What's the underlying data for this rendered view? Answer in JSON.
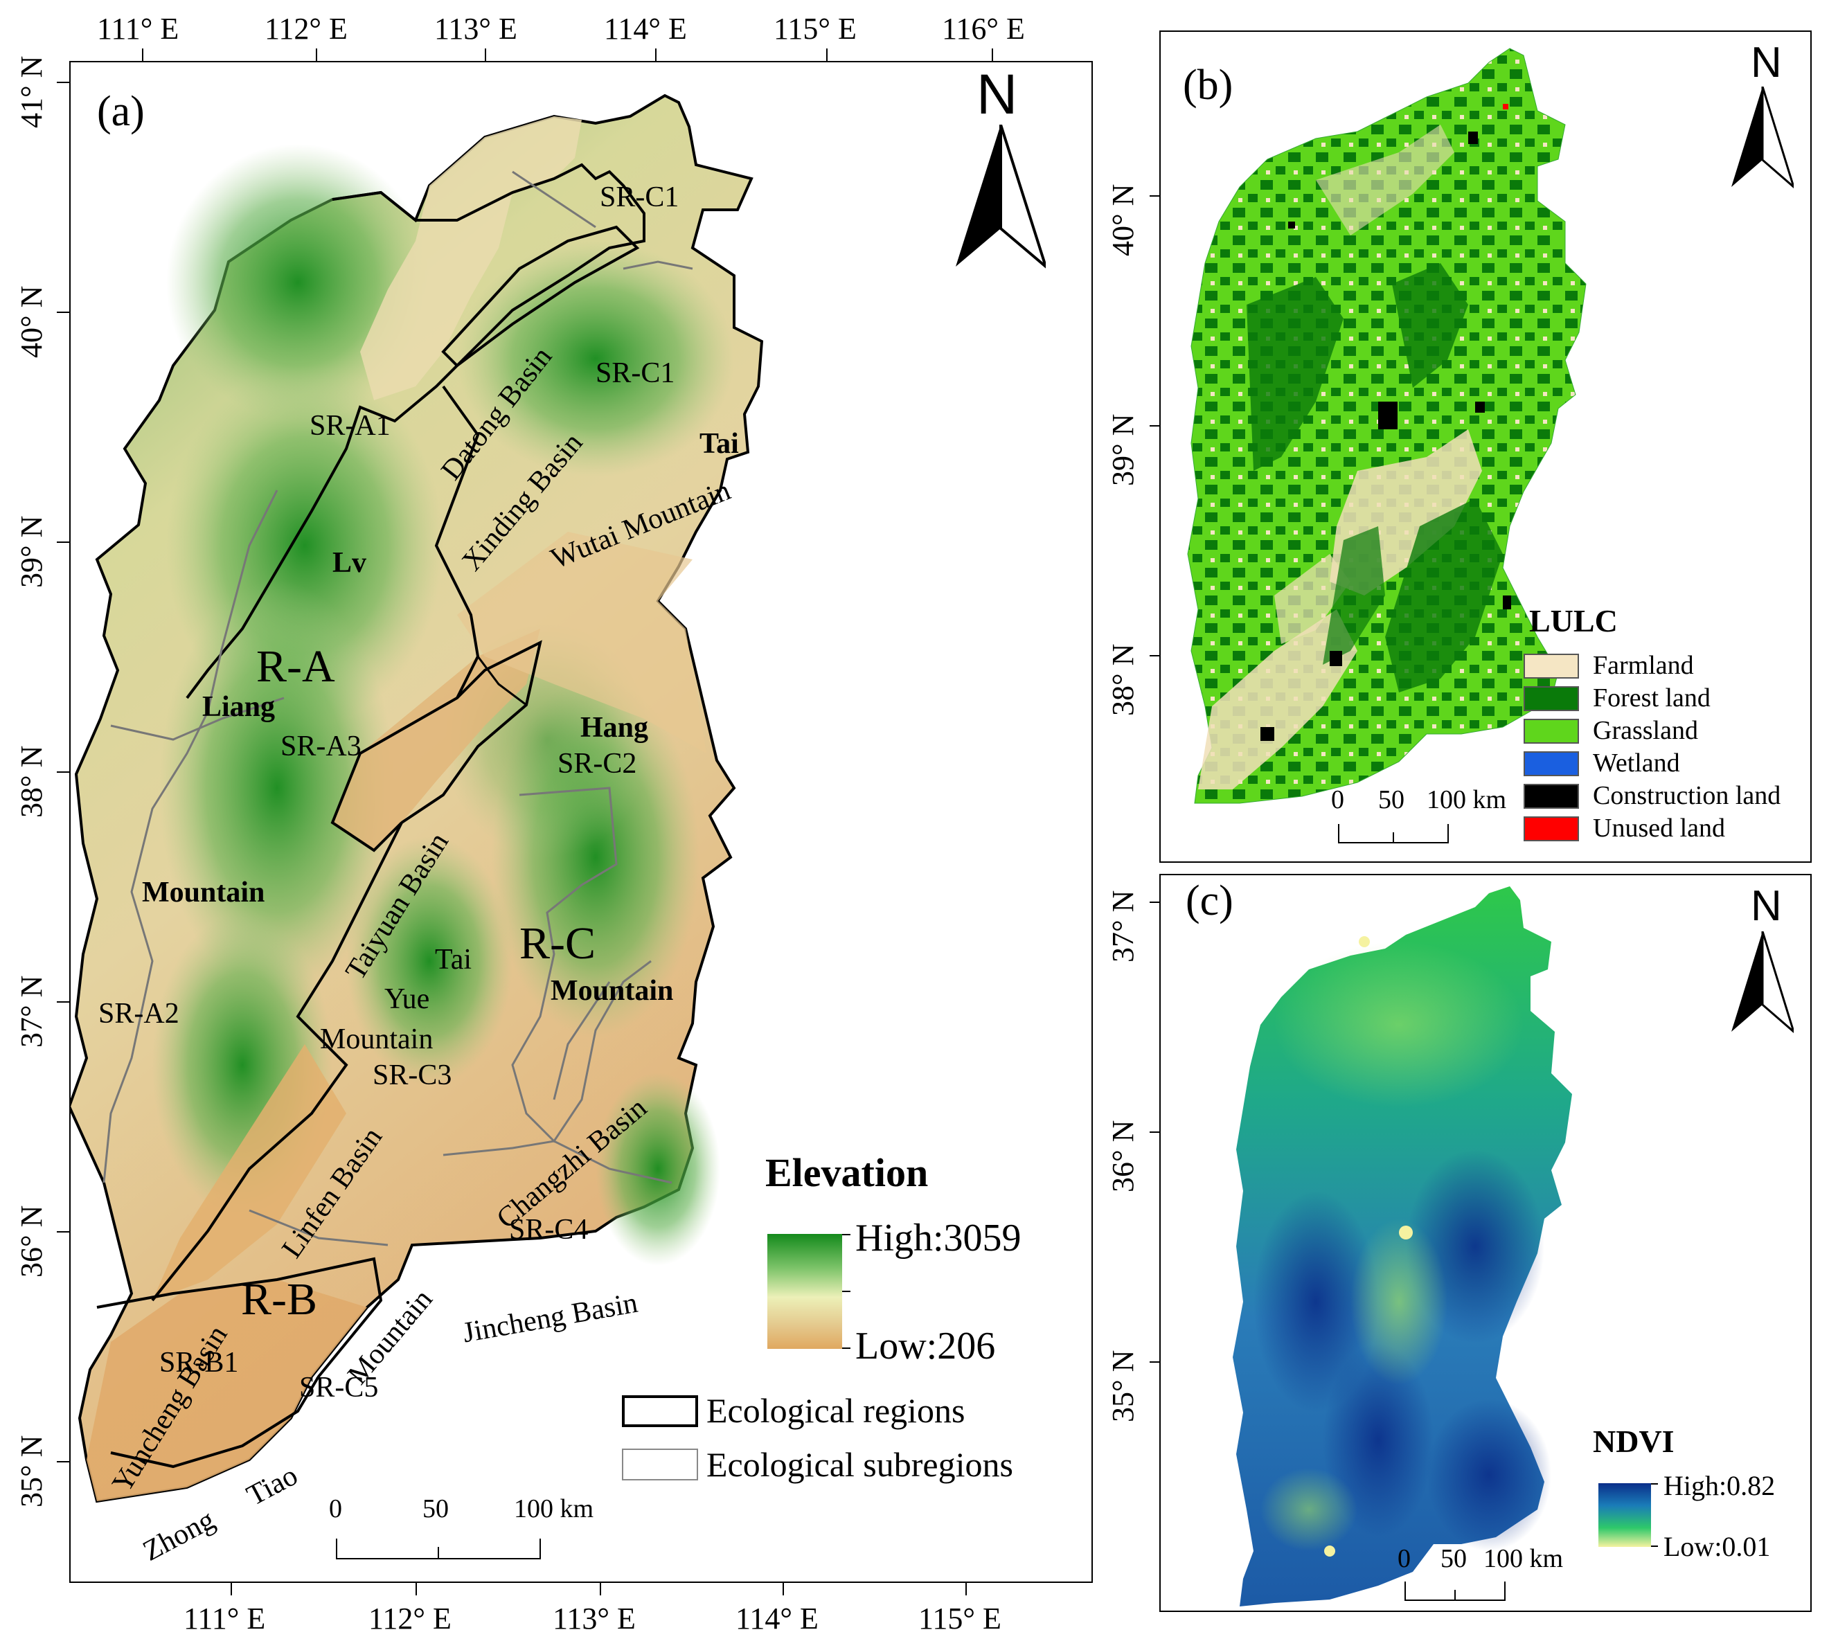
{
  "panel_a": {
    "label": "(a)",
    "top_longitudes": [
      "111° E",
      "112° E",
      "113° E",
      "114° E",
      "115° E",
      "116° E"
    ],
    "bottom_longitudes": [
      "111° E",
      "112° E",
      "113° E",
      "114° E",
      "115° E"
    ],
    "left_latitudes": [
      "41° N",
      "40° N",
      "39° N",
      "38° N",
      "37° N",
      "36° N",
      "35° N"
    ],
    "north": "N",
    "regions": {
      "ra": "R-A",
      "rb": "R-B",
      "rc": "R-C"
    },
    "subregions": {
      "src1_top": "SR-C1",
      "src1_mid": "SR-C1",
      "sra1": "SR-A1",
      "sra3": "SR-A3",
      "sra2": "SR-A2",
      "src2": "SR-C2",
      "src3": "SR-C3",
      "src4": "SR-C4",
      "src5": "SR-C5",
      "srb1": "SR-B1"
    },
    "places": {
      "datong": "Datong Basin",
      "xinding": "Xinding Basin",
      "wutai": "Wutai Mountain",
      "taiyuan": "Taiyuan Basin",
      "linfen": "Linfen Basin",
      "changzhi": "Changzhi Basin",
      "jincheng": "Jincheng Basin",
      "yuncheng": "Yuncheng Basin",
      "zhongtiao_mtn": "Mountain",
      "zhong": "Zhong",
      "tiao": "Tiao",
      "lv": "Lv",
      "liang": "Liang",
      "mountain_a": "Mountain",
      "tai_top": "Tai",
      "hang": "Hang",
      "mountain_c": "Mountain",
      "tai_mid": "Tai",
      "yue": "Yue",
      "yue_mountain": "Mountain"
    },
    "elevation_legend": {
      "title": "Elevation",
      "high": "High:3059",
      "low": "Low:206",
      "colors": [
        "#1a8a1a",
        "#e8e8b0",
        "#e0a860"
      ]
    },
    "boundary_legend": {
      "regions": "Ecological regions",
      "subregions": "Ecological subregions"
    },
    "scale": {
      "s0": "0",
      "s50": "50",
      "s100": "100 km"
    }
  },
  "panel_b": {
    "label": "(b)",
    "north": "N",
    "right_latitudes": [
      "40° N",
      "39° N",
      "38° N"
    ],
    "legend_title": "LULC",
    "classes": [
      {
        "name": "Farmland",
        "color": "#f5e6c4"
      },
      {
        "name": "Forest land",
        "color": "#0a7a0a"
      },
      {
        "name": "Grassland",
        "color": "#5fd61c"
      },
      {
        "name": "Wetland",
        "color": "#1a5fe0"
      },
      {
        "name": "Construction land",
        "color": "#000000"
      },
      {
        "name": "Unused land",
        "color": "#ff0000"
      }
    ],
    "scale": {
      "s0": "0",
      "s50": "50",
      "s100": "100 km"
    }
  },
  "panel_c": {
    "label": "(c)",
    "north": "N",
    "right_latitudes": [
      "37° N",
      "36° N",
      "35° N"
    ],
    "legend_title": "NDVI",
    "high": "High:0.82",
    "low": "Low:0.01",
    "scale": {
      "s0": "0",
      "s50": "50",
      "s100": "100 km"
    }
  }
}
